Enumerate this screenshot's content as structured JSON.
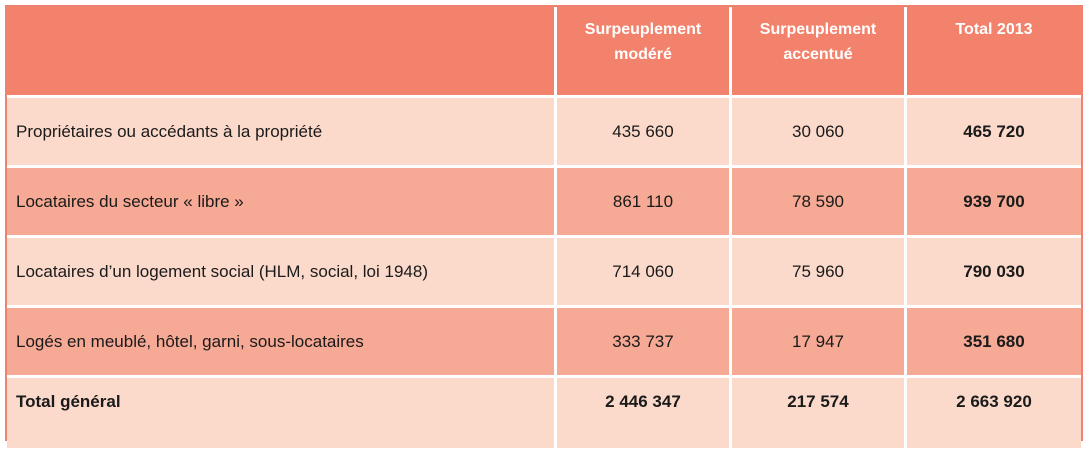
{
  "header": {
    "col1": [
      "Surpeuplement",
      "modéré"
    ],
    "col2": [
      "Surpeuplement",
      "accentué"
    ],
    "col3": "Total 2013"
  },
  "rows": [
    {
      "label": "Propriétaires ou accédants à la propriété",
      "moderate": "435 660",
      "accentuated": "30 060",
      "total": "465 720"
    },
    {
      "label": "Locataires du secteur « libre »",
      "moderate": "861 110",
      "accentuated": "78 590",
      "total": "939 700"
    },
    {
      "label": "Locataires d’un logement social (HLM, social, loi 1948)",
      "moderate": "714 060",
      "accentuated": "75 960",
      "total": "790 030"
    },
    {
      "label": "Logés en meublé, hôtel, garni, sous-locataires",
      "moderate": "333 737",
      "accentuated": "17 947",
      "total": "351 680"
    }
  ],
  "total_row": {
    "label": "Total général",
    "moderate": "2 446 347",
    "accentuated": "217 574",
    "total": "2 663 920"
  },
  "colors": {
    "header": "#f3826c",
    "row_light": "#fbd9cb",
    "row_dark": "#f6a994",
    "border": "#f08070"
  }
}
